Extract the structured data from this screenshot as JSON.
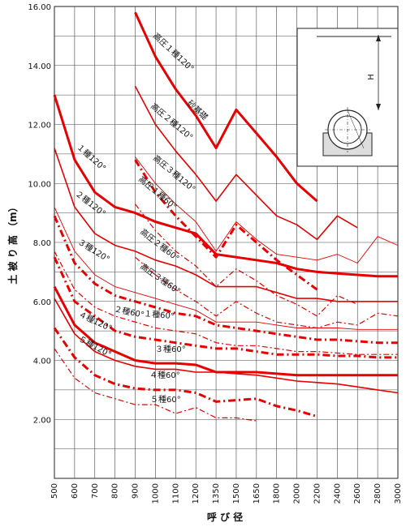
{
  "chart_data": {
    "type": "line",
    "title": "",
    "xlabel": "呼 び 径",
    "ylabel": "土 被 り 高 （m）",
    "x": [
      500,
      600,
      700,
      800,
      900,
      1000,
      1100,
      1200,
      1350,
      1500,
      1650,
      1800,
      2000,
      2200,
      2400,
      2600,
      2800,
      3000
    ],
    "ylim": [
      0,
      16
    ],
    "yticks": [
      "2.00",
      "4.00",
      "6.00",
      "8.00",
      "10.00",
      "12.00",
      "14.00",
      "16.00"
    ],
    "grid": true,
    "accent_color": "#e60000",
    "series": [
      {
        "name": "高圧１種120° 砂基礎",
        "style": "thick",
        "values": [
          null,
          null,
          null,
          null,
          15.8,
          14.3,
          13.2,
          12.3,
          11.2,
          12.5,
          11.7,
          10.9,
          10.0,
          9.4,
          null,
          null,
          null,
          null
        ]
      },
      {
        "name": "高圧２種120°",
        "style": "medium",
        "values": [
          null,
          null,
          null,
          null,
          13.3,
          12.0,
          11.1,
          10.3,
          9.4,
          10.3,
          9.6,
          8.9,
          8.6,
          8.1,
          8.9,
          8.5,
          null,
          null
        ]
      },
      {
        "name": "高圧３種120°",
        "style": "thin",
        "values": [
          null,
          null,
          null,
          null,
          10.9,
          10.0,
          9.3,
          8.7,
          7.7,
          8.7,
          8.1,
          7.6,
          7.5,
          7.4,
          7.6,
          7.3,
          8.2,
          7.9
        ]
      },
      {
        "name": "高圧１種60°",
        "style": "dashdot",
        "values": [
          null,
          null,
          null,
          null,
          10.8,
          9.7,
          8.9,
          8.2,
          7.5,
          8.6,
          8.0,
          7.4,
          6.9,
          6.4,
          null,
          null,
          null,
          null
        ]
      },
      {
        "name": "高圧２種60°",
        "style": "dashdot-thin",
        "values": [
          null,
          null,
          null,
          null,
          9.3,
          8.4,
          7.7,
          7.2,
          6.5,
          7.1,
          6.7,
          6.2,
          5.9,
          5.5,
          6.2,
          5.9,
          null,
          null
        ]
      },
      {
        "name": "高圧３種60°",
        "style": "dashdot-thin",
        "values": [
          null,
          null,
          null,
          null,
          7.5,
          6.9,
          6.4,
          6.0,
          5.5,
          6.0,
          5.6,
          5.3,
          5.2,
          5.1,
          5.3,
          5.2,
          5.6,
          5.5
        ]
      },
      {
        "name": "１種120°",
        "style": "thick",
        "values": [
          13.0,
          10.8,
          9.7,
          9.2,
          9.0,
          8.7,
          8.5,
          8.3,
          7.6,
          7.5,
          7.4,
          7.3,
          7.1,
          7.0,
          6.95,
          6.9,
          6.85,
          6.85
        ]
      },
      {
        "name": "２種120°",
        "style": "medium",
        "values": [
          11.2,
          9.2,
          8.3,
          7.9,
          7.7,
          7.4,
          7.2,
          6.9,
          6.5,
          6.5,
          6.5,
          6.3,
          6.1,
          6.1,
          6.0,
          6.0,
          6.0,
          6.0
        ]
      },
      {
        "name": "３種120°",
        "style": "thin",
        "values": [
          9.2,
          7.7,
          6.9,
          6.5,
          6.3,
          6.1,
          5.9,
          5.7,
          5.3,
          5.3,
          5.3,
          5.2,
          5.1,
          5.1,
          5.1,
          5.05,
          5.05,
          5.05
        ]
      },
      {
        "name": "２種60°",
        "style": "dashdot",
        "values": [
          8.9,
          7.3,
          6.6,
          6.2,
          6.0,
          5.8,
          5.6,
          5.5,
          5.2,
          5.1,
          5.0,
          4.9,
          4.8,
          4.7,
          4.7,
          4.65,
          4.6,
          4.6
        ]
      },
      {
        "name": "１種60°",
        "style": "dashdot-thin",
        "values": [
          7.7,
          6.4,
          5.8,
          5.5,
          5.3,
          5.1,
          5.0,
          4.9,
          4.6,
          4.5,
          4.5,
          4.4,
          4.3,
          4.3,
          4.25,
          4.2,
          4.2,
          4.2
        ]
      },
      {
        "name": "３種60°",
        "style": "dashdot",
        "values": [
          7.5,
          6.0,
          5.5,
          5.0,
          4.8,
          4.7,
          4.6,
          4.5,
          4.4,
          4.4,
          4.3,
          4.2,
          4.2,
          4.2,
          4.15,
          4.15,
          4.1,
          4.1
        ]
      },
      {
        "name": "４種120°",
        "style": "thick",
        "values": [
          6.5,
          5.2,
          4.6,
          4.3,
          4.0,
          3.9,
          3.9,
          3.85,
          3.6,
          3.6,
          3.6,
          3.55,
          3.5,
          3.5,
          3.5,
          3.5,
          3.5,
          3.5
        ]
      },
      {
        "name": "５種120°",
        "style": "medium",
        "values": [
          6.1,
          4.9,
          4.3,
          4.0,
          3.8,
          3.7,
          3.7,
          3.6,
          3.6,
          3.55,
          3.5,
          3.4,
          3.3,
          3.25,
          3.2,
          3.1,
          3.0,
          2.9
        ]
      },
      {
        "name": "４種60°",
        "style": "dashdot",
        "values": [
          5.1,
          4.1,
          3.5,
          3.2,
          3.05,
          3.0,
          3.0,
          2.9,
          2.6,
          2.65,
          2.7,
          2.45,
          2.3,
          2.1,
          null,
          null,
          null,
          null
        ]
      },
      {
        "name": "５種60°",
        "style": "dashdot-thin",
        "values": [
          4.4,
          3.4,
          2.9,
          2.7,
          2.5,
          2.5,
          2.2,
          2.4,
          2.05,
          2.05,
          1.95,
          null,
          null,
          null,
          null,
          null,
          null,
          null
        ]
      }
    ]
  },
  "series_labels": [
    {
      "text": "高圧１種120°",
      "rotation": 43
    },
    {
      "text": "砂基礎",
      "rotation": 43
    },
    {
      "text": "高圧２種120°",
      "rotation": 40
    },
    {
      "text": "高圧３種120°",
      "rotation": 40
    },
    {
      "text": "高圧１種60°",
      "rotation": 40
    },
    {
      "text": "高圧２種60°",
      "rotation": 38
    },
    {
      "text": "高圧３種60°",
      "rotation": 35
    },
    {
      "text": "１種120°",
      "rotation": 42
    },
    {
      "text": "２種120°",
      "rotation": 38
    },
    {
      "text": "３種120°",
      "rotation": 32
    },
    {
      "text": "２種60°",
      "rotation": 12
    },
    {
      "text": "１種60°",
      "rotation": 5
    },
    {
      "text": "３種60°",
      "rotation": 0
    },
    {
      "text": "４種120°",
      "rotation": 25
    },
    {
      "text": "５種120°",
      "rotation": 28
    },
    {
      "text": "４種60°",
      "rotation": 0
    },
    {
      "text": "５種60°",
      "rotation": 0
    }
  ],
  "inset": {
    "h_label": "H"
  }
}
